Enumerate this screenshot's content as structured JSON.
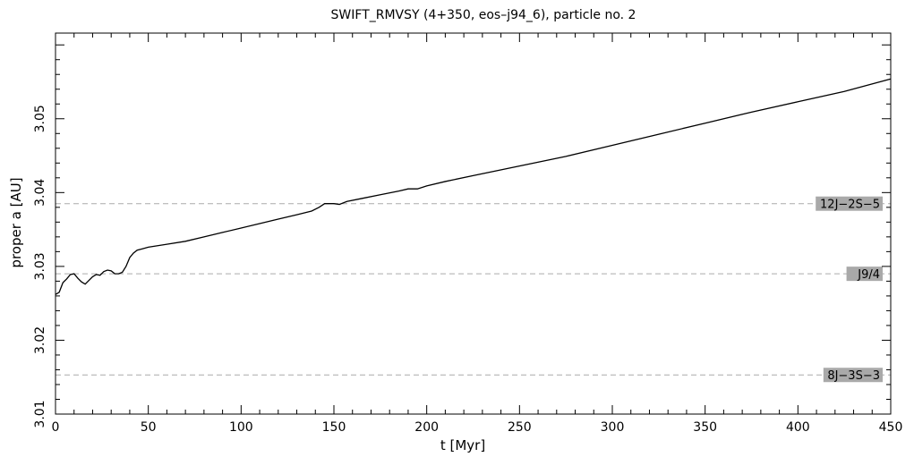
{
  "chart_data": {
    "type": "line",
    "title": "SWIFT_RMVSY (4+350, eos–j94_6), particle no. 2",
    "xlabel": "t [Myr]",
    "ylabel": "proper a [AU]",
    "xlim": [
      0,
      450
    ],
    "ylim": [
      3.01,
      3.0616
    ],
    "x_ticks": [
      "0",
      "50",
      "100",
      "150",
      "200",
      "250",
      "300",
      "350",
      "400",
      "450"
    ],
    "y_ticks": [
      "3.01",
      "3.02",
      "3.03",
      "3.04",
      "3.05"
    ],
    "grid": false,
    "series": [
      {
        "values": [
          [
            0,
            3.0262
          ],
          [
            2,
            3.0265
          ],
          [
            4,
            3.0278
          ],
          [
            6,
            3.0283
          ],
          [
            8,
            3.0289
          ],
          [
            10,
            3.029
          ],
          [
            12,
            3.0284
          ],
          [
            14,
            3.0279
          ],
          [
            16,
            3.0276
          ],
          [
            18,
            3.0281
          ],
          [
            20,
            3.0286
          ],
          [
            22,
            3.0289
          ],
          [
            24,
            3.0288
          ],
          [
            26,
            3.0293
          ],
          [
            28,
            3.0295
          ],
          [
            30,
            3.0294
          ],
          [
            32,
            3.029
          ],
          [
            34,
            3.029
          ],
          [
            36,
            3.0292
          ],
          [
            38,
            3.03
          ],
          [
            40,
            3.0312
          ],
          [
            42,
            3.0318
          ],
          [
            44,
            3.0322
          ],
          [
            47,
            3.0324
          ],
          [
            50,
            3.0326
          ],
          [
            60,
            3.033
          ],
          [
            70,
            3.0334
          ],
          [
            80,
            3.034
          ],
          [
            90,
            3.0346
          ],
          [
            100,
            3.0352
          ],
          [
            110,
            3.0358
          ],
          [
            120,
            3.0364
          ],
          [
            130,
            3.037
          ],
          [
            138,
            3.0375
          ],
          [
            142,
            3.038
          ],
          [
            145,
            3.0385
          ],
          [
            150,
            3.0385
          ],
          [
            153,
            3.0384
          ],
          [
            157,
            3.0388
          ],
          [
            165,
            3.0392
          ],
          [
            175,
            3.0397
          ],
          [
            185,
            3.0402
          ],
          [
            190,
            3.0405
          ],
          [
            195,
            3.0405
          ],
          [
            200,
            3.0409
          ],
          [
            210,
            3.0415
          ],
          [
            225,
            3.0423
          ],
          [
            250,
            3.0436
          ],
          [
            275,
            3.0449
          ],
          [
            300,
            3.0464
          ],
          [
            325,
            3.0479
          ],
          [
            350,
            3.0494
          ],
          [
            375,
            3.0509
          ],
          [
            400,
            3.0523
          ],
          [
            425,
            3.0537
          ],
          [
            450,
            3.0554
          ]
        ]
      }
    ],
    "resonances": [
      {
        "label": "12J−2S−5",
        "value": 3.0385
      },
      {
        "label": "J9/4",
        "value": 3.029
      },
      {
        "label": "8J−3S−3",
        "value": 3.0153
      }
    ]
  },
  "colors": {
    "line": "#000000",
    "resonance_line": "#aaaaaa",
    "label_bg": "#a9a9a9"
  }
}
